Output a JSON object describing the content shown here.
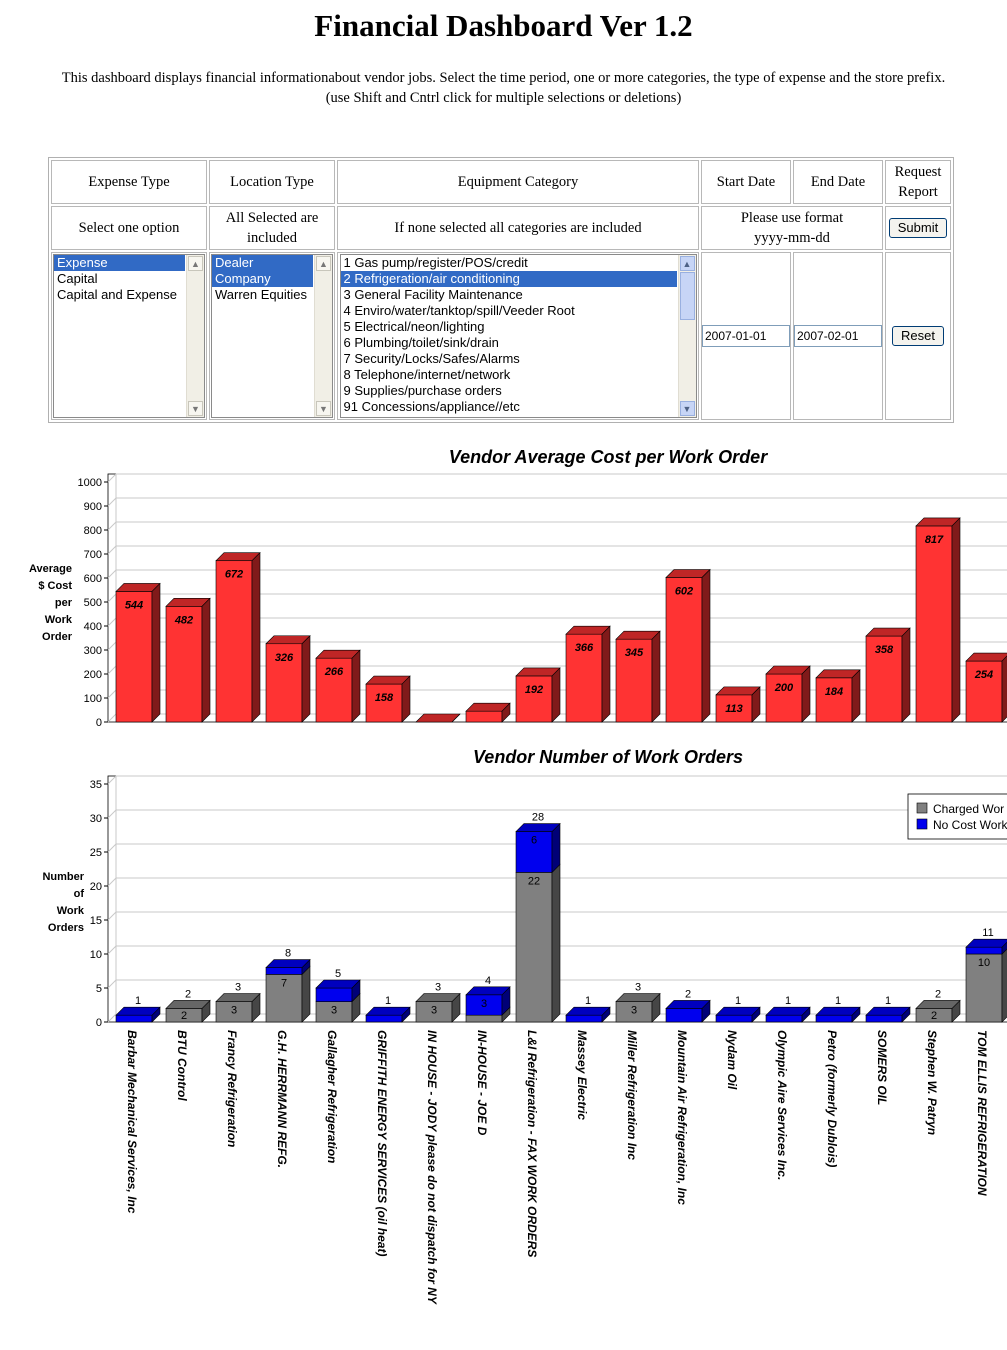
{
  "header": {
    "title": "Financial Dashboard Ver 1.2",
    "desc_line1": "This dashboard displays financial informationabout vendor jobs. Select the time period, one or more categories, the type of expense and the store prefix.",
    "desc_line2": "(use Shift and Cntrl click for multiple selections or deletions)"
  },
  "form": {
    "headers": {
      "expense_type": "Expense Type",
      "location_type": "Location Type",
      "equipment_category": "Equipment Category",
      "start_date": "Start Date",
      "end_date": "End Date",
      "request_report": "Request Report"
    },
    "hints": {
      "expense": "Select one option",
      "location": "All Selected are included",
      "category": "If none selected all categories are included",
      "date_format": "Please use format yyyy-mm-dd"
    },
    "expense_options": [
      {
        "label": "Expense",
        "selected": true
      },
      {
        "label": "Capital",
        "selected": false
      },
      {
        "label": "Capital and Expense",
        "selected": false
      }
    ],
    "location_options": [
      {
        "label": "Dealer",
        "selected": true
      },
      {
        "label": "Company",
        "selected": true
      },
      {
        "label": "Warren Equities",
        "selected": false
      }
    ],
    "category_options": [
      {
        "label": "1 Gas pump/register/POS/credit",
        "selected": false
      },
      {
        "label": "2 Refrigeration/air conditioning",
        "selected": true
      },
      {
        "label": "3 General Facility Maintenance",
        "selected": false
      },
      {
        "label": "4 Enviro/water/tanktop/spill/Veeder Root",
        "selected": false
      },
      {
        "label": "5 Electrical/neon/lighting",
        "selected": false
      },
      {
        "label": "6 Plumbing/toilet/sink/drain",
        "selected": false
      },
      {
        "label": "7 Security/Locks/Safes/Alarms",
        "selected": false
      },
      {
        "label": "8 Telephone/internet/network",
        "selected": false
      },
      {
        "label": "9 Supplies/purchase orders",
        "selected": false
      },
      {
        "label": "91 Concessions/appliance//etc",
        "selected": false
      }
    ],
    "start_date": "2007-01-01",
    "end_date": "2007-02-01",
    "submit_label": "Submit",
    "reset_label": "Reset"
  },
  "chart_data": [
    {
      "type": "bar",
      "title": "Vendor Average Cost per Work Order",
      "ylabel": "Average $ Cost per Work Order",
      "ylim": [
        0,
        1000
      ],
      "yticks": [
        0,
        100,
        200,
        300,
        400,
        500,
        600,
        700,
        800,
        900,
        1000
      ],
      "values": [
        544,
        482,
        672,
        326,
        266,
        158,
        0,
        45,
        192,
        366,
        345,
        602,
        113,
        200,
        184,
        358,
        817,
        254
      ],
      "data_labels": [
        "544",
        "482",
        "672",
        "326",
        "266",
        "158",
        "",
        "",
        "192",
        "366",
        "345",
        "602",
        "113",
        "200",
        "184",
        "358",
        "817",
        "254"
      ],
      "color": "#ff3333"
    },
    {
      "type": "bar",
      "stacked": true,
      "title": "Vendor Number of Work Orders",
      "ylabel": "Number of Work Orders",
      "ylim": [
        0,
        35
      ],
      "yticks": [
        0,
        5,
        10,
        15,
        20,
        25,
        30,
        35
      ],
      "categories": [
        "Barbar Mechanical Services, Inc",
        "BTU Control",
        "Francy Refrigeration",
        "G.H. HERRMANN REFG.",
        "Gallagher Refrigeration",
        "GRIFFITH ENERGY SERVICES (oil heat)",
        "IN HOUSE - JODY please do not dispatch for NY",
        "IN-HOUSE - JOE D",
        "L&I Refrigeration - FAX WORK ORDERS",
        "Massey Electric",
        "Miller Refrigeration Inc",
        "Mountain Air Refrigeration, Inc",
        "Nydam Oil",
        "Olympic Aire Services Inc.",
        "Petro (formerly Dublois)",
        "SOMERS OIL",
        "Stephen W. Patryn",
        "TOM ELLIS REFRIGERATION"
      ],
      "series": [
        {
          "name": "Charged Wor",
          "color": "#808080",
          "values": [
            0,
            2,
            3,
            7,
            3,
            0,
            3,
            1,
            22,
            0,
            3,
            0,
            0,
            0,
            0,
            0,
            2,
            10
          ],
          "labels": [
            "",
            "2",
            "3",
            "7",
            "3",
            "",
            "3",
            "",
            "22",
            "",
            "3",
            "",
            "",
            "",
            "",
            "",
            "2",
            "10"
          ]
        },
        {
          "name": "No Cost Work",
          "color": "#0000ee",
          "values": [
            1,
            0,
            0,
            1,
            2,
            1,
            0,
            3,
            6,
            1,
            0,
            2,
            1,
            1,
            1,
            1,
            0,
            1
          ],
          "labels": [
            "",
            "",
            "",
            "",
            "",
            "",
            "",
            "3",
            "6",
            "",
            "",
            "",
            "",
            "",
            "",
            "",
            "",
            ""
          ]
        }
      ],
      "totals": [
        "1",
        "2",
        "3",
        "8",
        "5",
        "1",
        "3",
        "4",
        "28",
        "1",
        "3",
        "2",
        "1",
        "1",
        "1",
        "1",
        "2",
        "11"
      ],
      "legend_position": "top-right"
    }
  ]
}
